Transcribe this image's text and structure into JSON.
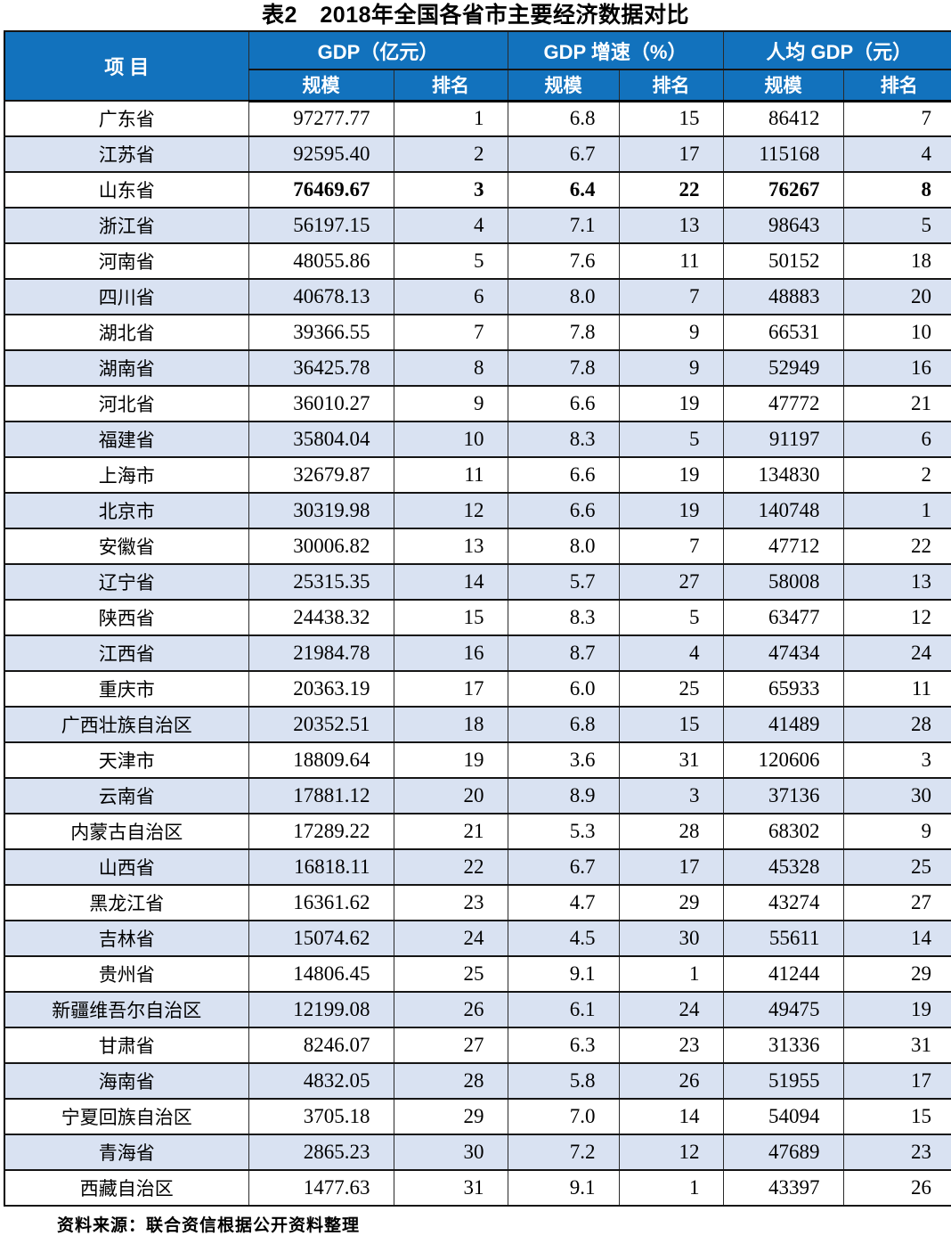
{
  "title": "表2　2018年全国各省市主要经济数据对比",
  "colors": {
    "header_bg": "#1272bd",
    "header_text": "#ffffff",
    "stripe_bg": "#d9e2f2",
    "border": "#151515",
    "text": "#000000"
  },
  "table": {
    "header": {
      "item": "项  目",
      "gdp": "GDP（亿元）",
      "growth": "GDP 增速（%）",
      "per_capita": "人均 GDP（元）"
    },
    "subheaders": [
      "规模",
      "排名",
      "规模",
      "排名",
      "规模",
      "排名"
    ],
    "rows": [
      {
        "name": "广东省",
        "gdp": "97277.77",
        "gdp_rank": "1",
        "growth": "6.8",
        "growth_rank": "15",
        "pc_gdp": "86412",
        "pc_rank": "7",
        "bold": false
      },
      {
        "name": "江苏省",
        "gdp": "92595.40",
        "gdp_rank": "2",
        "growth": "6.7",
        "growth_rank": "17",
        "pc_gdp": "115168",
        "pc_rank": "4",
        "bold": false
      },
      {
        "name": "山东省",
        "gdp": "76469.67",
        "gdp_rank": "3",
        "growth": "6.4",
        "growth_rank": "22",
        "pc_gdp": "76267",
        "pc_rank": "8",
        "bold": true
      },
      {
        "name": "浙江省",
        "gdp": "56197.15",
        "gdp_rank": "4",
        "growth": "7.1",
        "growth_rank": "13",
        "pc_gdp": "98643",
        "pc_rank": "5",
        "bold": false
      },
      {
        "name": "河南省",
        "gdp": "48055.86",
        "gdp_rank": "5",
        "growth": "7.6",
        "growth_rank": "11",
        "pc_gdp": "50152",
        "pc_rank": "18",
        "bold": false
      },
      {
        "name": "四川省",
        "gdp": "40678.13",
        "gdp_rank": "6",
        "growth": "8.0",
        "growth_rank": "7",
        "pc_gdp": "48883",
        "pc_rank": "20",
        "bold": false
      },
      {
        "name": "湖北省",
        "gdp": "39366.55",
        "gdp_rank": "7",
        "growth": "7.8",
        "growth_rank": "9",
        "pc_gdp": "66531",
        "pc_rank": "10",
        "bold": false
      },
      {
        "name": "湖南省",
        "gdp": "36425.78",
        "gdp_rank": "8",
        "growth": "7.8",
        "growth_rank": "9",
        "pc_gdp": "52949",
        "pc_rank": "16",
        "bold": false
      },
      {
        "name": "河北省",
        "gdp": "36010.27",
        "gdp_rank": "9",
        "growth": "6.6",
        "growth_rank": "19",
        "pc_gdp": "47772",
        "pc_rank": "21",
        "bold": false
      },
      {
        "name": "福建省",
        "gdp": "35804.04",
        "gdp_rank": "10",
        "growth": "8.3",
        "growth_rank": "5",
        "pc_gdp": "91197",
        "pc_rank": "6",
        "bold": false
      },
      {
        "name": "上海市",
        "gdp": "32679.87",
        "gdp_rank": "11",
        "growth": "6.6",
        "growth_rank": "19",
        "pc_gdp": "134830",
        "pc_rank": "2",
        "bold": false
      },
      {
        "name": "北京市",
        "gdp": "30319.98",
        "gdp_rank": "12",
        "growth": "6.6",
        "growth_rank": "19",
        "pc_gdp": "140748",
        "pc_rank": "1",
        "bold": false
      },
      {
        "name": "安徽省",
        "gdp": "30006.82",
        "gdp_rank": "13",
        "growth": "8.0",
        "growth_rank": "7",
        "pc_gdp": "47712",
        "pc_rank": "22",
        "bold": false
      },
      {
        "name": "辽宁省",
        "gdp": "25315.35",
        "gdp_rank": "14",
        "growth": "5.7",
        "growth_rank": "27",
        "pc_gdp": "58008",
        "pc_rank": "13",
        "bold": false
      },
      {
        "name": "陕西省",
        "gdp": "24438.32",
        "gdp_rank": "15",
        "growth": "8.3",
        "growth_rank": "5",
        "pc_gdp": "63477",
        "pc_rank": "12",
        "bold": false
      },
      {
        "name": "江西省",
        "gdp": "21984.78",
        "gdp_rank": "16",
        "growth": "8.7",
        "growth_rank": "4",
        "pc_gdp": "47434",
        "pc_rank": "24",
        "bold": false
      },
      {
        "name": "重庆市",
        "gdp": "20363.19",
        "gdp_rank": "17",
        "growth": "6.0",
        "growth_rank": "25",
        "pc_gdp": "65933",
        "pc_rank": "11",
        "bold": false
      },
      {
        "name": "广西壮族自治区",
        "gdp": "20352.51",
        "gdp_rank": "18",
        "growth": "6.8",
        "growth_rank": "15",
        "pc_gdp": "41489",
        "pc_rank": "28",
        "bold": false
      },
      {
        "name": "天津市",
        "gdp": "18809.64",
        "gdp_rank": "19",
        "growth": "3.6",
        "growth_rank": "31",
        "pc_gdp": "120606",
        "pc_rank": "3",
        "bold": false
      },
      {
        "name": "云南省",
        "gdp": "17881.12",
        "gdp_rank": "20",
        "growth": "8.9",
        "growth_rank": "3",
        "pc_gdp": "37136",
        "pc_rank": "30",
        "bold": false
      },
      {
        "name": "内蒙古自治区",
        "gdp": "17289.22",
        "gdp_rank": "21",
        "growth": "5.3",
        "growth_rank": "28",
        "pc_gdp": "68302",
        "pc_rank": "9",
        "bold": false
      },
      {
        "name": "山西省",
        "gdp": "16818.11",
        "gdp_rank": "22",
        "growth": "6.7",
        "growth_rank": "17",
        "pc_gdp": "45328",
        "pc_rank": "25",
        "bold": false
      },
      {
        "name": "黑龙江省",
        "gdp": "16361.62",
        "gdp_rank": "23",
        "growth": "4.7",
        "growth_rank": "29",
        "pc_gdp": "43274",
        "pc_rank": "27",
        "bold": false
      },
      {
        "name": "吉林省",
        "gdp": "15074.62",
        "gdp_rank": "24",
        "growth": "4.5",
        "growth_rank": "30",
        "pc_gdp": "55611",
        "pc_rank": "14",
        "bold": false
      },
      {
        "name": "贵州省",
        "gdp": "14806.45",
        "gdp_rank": "25",
        "growth": "9.1",
        "growth_rank": "1",
        "pc_gdp": "41244",
        "pc_rank": "29",
        "bold": false
      },
      {
        "name": "新疆维吾尔自治区",
        "gdp": "12199.08",
        "gdp_rank": "26",
        "growth": "6.1",
        "growth_rank": "24",
        "pc_gdp": "49475",
        "pc_rank": "19",
        "bold": false
      },
      {
        "name": "甘肃省",
        "gdp": "8246.07",
        "gdp_rank": "27",
        "growth": "6.3",
        "growth_rank": "23",
        "pc_gdp": "31336",
        "pc_rank": "31",
        "bold": false
      },
      {
        "name": "海南省",
        "gdp": "4832.05",
        "gdp_rank": "28",
        "growth": "5.8",
        "growth_rank": "26",
        "pc_gdp": "51955",
        "pc_rank": "17",
        "bold": false
      },
      {
        "name": "宁夏回族自治区",
        "gdp": "3705.18",
        "gdp_rank": "29",
        "growth": "7.0",
        "growth_rank": "14",
        "pc_gdp": "54094",
        "pc_rank": "15",
        "bold": false
      },
      {
        "name": "青海省",
        "gdp": "2865.23",
        "gdp_rank": "30",
        "growth": "7.2",
        "growth_rank": "12",
        "pc_gdp": "47689",
        "pc_rank": "23",
        "bold": false
      },
      {
        "name": "西藏自治区",
        "gdp": "1477.63",
        "gdp_rank": "31",
        "growth": "9.1",
        "growth_rank": "1",
        "pc_gdp": "43397",
        "pc_rank": "26",
        "bold": false
      }
    ]
  },
  "footer": {
    "source": "资料来源：联合资信根据公开资料整理"
  }
}
